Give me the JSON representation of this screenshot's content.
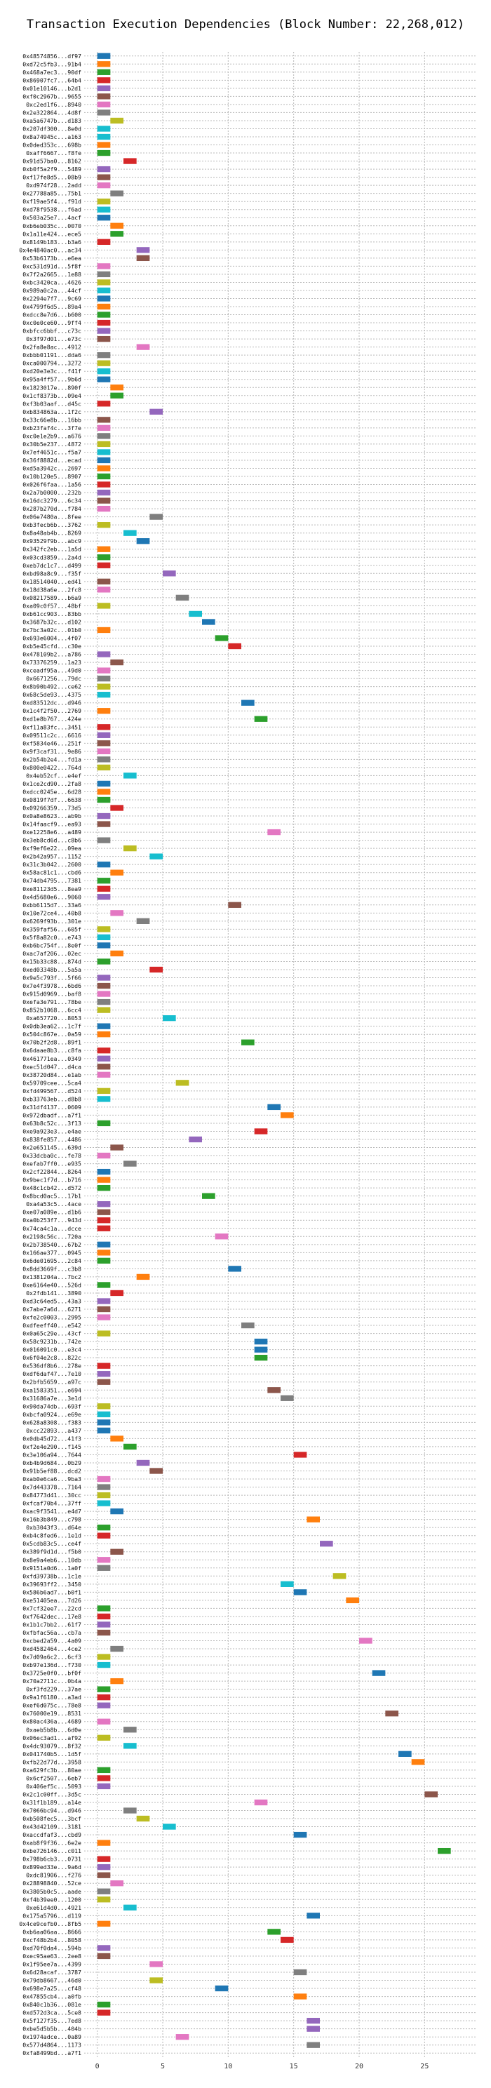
{
  "chart_data": {
    "type": "gantt",
    "title": "Transaction Execution Dependencies (Block Number: 22,268,012)",
    "xlabel": "",
    "ylabel": "",
    "xlim": [
      -1,
      29
    ],
    "xticks": [
      0,
      5,
      10,
      15,
      20,
      25
    ],
    "grid": true,
    "legend": "none",
    "colors": [
      "#1f77b4",
      "#ff7f0e",
      "#2ca02c",
      "#d62728",
      "#9467bd",
      "#8c564b",
      "#e377c2",
      "#7f7f7f",
      "#bcbd22",
      "#17becf"
    ],
    "categories": [
      "0x48574856...df97",
      "0xd72c5fb3...91b4",
      "0x468a7ec3...90df",
      "0x86907fc7...64b4",
      "0x01e10146...b2d1",
      "0xf0c2967b...9655",
      "0xc2ed1f6...8940",
      "0x2e322864...4d8f",
      "0xa5a6747b...d183",
      "0x207df300...8e0d",
      "0x8a74945c...a163",
      "0x0ded353c...698b",
      "0xaff6667...f8fe",
      "0x91d57ba0...8162",
      "0xb0f5a2f9...5489",
      "0xf17fe8d5...08b9",
      "0xd974f28...2add",
      "0x27788a85...75b1",
      "0xf19ae5f4...f91d",
      "0xd78f9538...f6ad",
      "0x503a25e7...4acf",
      "0xb6eb035c...0070",
      "0x1a11e424...ece5",
      "0x8149b183...b3a6",
      "0x4e4840ac0...ac34",
      "0x53b6173b...e6ea",
      "0xc531d91d...5f8f",
      "0x7f2a2665...1e88",
      "0xbc3420ca...4626",
      "0x989a0c2a...44cf",
      "0x2294e7f7...9c69",
      "0x4799f6d5...89a4",
      "0xdcc8e7d6...b600",
      "0xc0e0ce60...9ff4",
      "0xbfcc6bbf...c73c",
      "0x3f97d01...e73c",
      "0x2fa8e8ac...4912",
      "0xbbb01191...dda6",
      "0xca000794...3272",
      "0xd20e3e3c...f41f",
      "0x95a4ff57...9b6d",
      "0x1823017e...890f",
      "0x1cf8373b...09e4",
      "0xf3b03aaf...d45c",
      "0xb834863a...1f2c",
      "0x33c66e8b...16bb",
      "0xb23faf4c...3f7e",
      "0xc0e1e2b9...a676",
      "0x30b5e237...4872",
      "0x7ef4651c...f5a7",
      "0x36f8882d...ecad",
      "0xd5a3942c...2697",
      "0x10b120e5...8907",
      "0x026f6faa...1a56",
      "0x2a7b0000...232b",
      "0x16dc3279...6c34",
      "0x287b270d...f784",
      "0x06e7480a...8fee",
      "0xb3fecb6b...3762",
      "0x8a48ab4b...8269",
      "0x93529f9b...abc9",
      "0x342fc2eb...1a5d",
      "0x03cd3859...2a4d",
      "0xeb7dc1c7...d499",
      "0xbd98a8c9...f35f",
      "0x18514040...ed41",
      "0x18d38a6e...2fc8",
      "0x08217589...b6a9",
      "0xa09c0f57...48bf",
      "0xb61cc903...83bb",
      "0x3687b32c...d102",
      "0x7bc3a02c...01b0",
      "0x693e6004...4f07",
      "0xb5e45cfd...c30e",
      "0x478109b2...a786",
      "0x73376259...1a23",
      "0xceadf95a...49d0",
      "0x6671256...79dc",
      "0x8b90b492...ce62",
      "0x68c5de93...4375",
      "0xd83512dc...d946",
      "0x1c4f2f50...2769",
      "0xd1e8b767...424e",
      "0xf11a83fc...3451",
      "0x09511c2c...6616",
      "0xf5834e46...251f",
      "0x9f3caf31...9e86",
      "0x2b54b2e4...fd1a",
      "0x800e0422...764d",
      "0x4eb52cf...e4ef",
      "0x1ce2cd90...2fa8",
      "0xdcc0245e...6d28",
      "0x0819f7df...6638",
      "0x09266359...73d5",
      "0x0a8e8623...ab9b",
      "0x14faacf9...ea93",
      "0xe12258e6...a489",
      "0x3eb8cd6d...c8b6",
      "0xf9ef6e22...09ea",
      "0x2b42a957...1152",
      "0x31c3b042...2600",
      "0x58ac81c1...cbd6",
      "0x74db4795...7381",
      "0xe81123d5...8ea9",
      "0x4d5680e6...9060",
      "0xbb6115d7...33a6",
      "0x10e72ce4...40b8",
      "0x6269f93b...301e",
      "0x359faf56...605f",
      "0x5f8a82c0...e743",
      "0xb6bc754f...8e0f",
      "0xac7af206...02ec",
      "0x15b33c88...874d",
      "0xed03348b...5a5a",
      "0x9e5c793f...5f66",
      "0x7e4f3978...6bd6",
      "0x915d0969...baf8",
      "0xefa3e791...78be",
      "0x852b1068...6cc4",
      "0xa657720...8053",
      "0x0db3ea62...1c7f",
      "0x504c867e...0a59",
      "0x70b2f2d8...89f1",
      "0x6daae8b3...c8fa",
      "0x461771ea...0349",
      "0xec51d047...d4ca",
      "0x38720d84...e1ab",
      "0x59709cee...5ca4",
      "0xfd499567...d524",
      "0xb33763eb...d8b8",
      "0x31df4137...0609",
      "0x972dbadf...a7f1",
      "0x63b8c52c...3f13",
      "0xe9a923e3...e4ae",
      "0x838fe857...4486",
      "0x2e651145...639d",
      "0x33dcba0c...fe78",
      "0xefab7ff0...e935",
      "0x2cf22844...8264",
      "0x9bec1f7d...b716",
      "0x48c1cb42...d572",
      "0x8bcd0ac5...17b1",
      "0xa4a53c5...4ace",
      "0xe07a089e...d1b6",
      "0xa0b253f7...943d",
      "0x74ca4c1a...dcce",
      "0x2198c56c...720a",
      "0x2b738540...67b2",
      "0x166ae377...0945",
      "0x6de01695...2c84",
      "0x8dd3669f...c3b8",
      "0x1381204a...7bc2",
      "0xe6164e40...526d",
      "0x2fdb141...3890",
      "0xd3c64ed5...43a3",
      "0x7abe7a6d...6271",
      "0xfe2c0003...2995",
      "0xdfeeff40...e542",
      "0x0a65c29e...43cf",
      "0x58c9231b...742e",
      "0x016091c0...e3c4",
      "0x6f04e2c8...822c",
      "0x536df8b6...278e",
      "0xdf6daf47...7e10",
      "0x2bfb5659...a97c",
      "0xa1583351...e694",
      "0x31686a7e...3e1d",
      "0x90da74db...693f",
      "0xbcfa0924...e69e",
      "0x628a8308...f383",
      "0xcc22893...a437",
      "0x0db45d72...41f3",
      "0xf2e4e290...f145",
      "0x3e106a94...7644",
      "0xb4b9d684...0b29",
      "0x91b5ef88...dcd2",
      "0xab0e6ca6...9ba3",
      "0x7d443378...7164",
      "0x84773d41...30cc",
      "0xfcaf70b4...37ff",
      "0xac9f3541...e4d7",
      "0x16b3b849...c798",
      "0xb3043f3...d64e",
      "0xb4c8fed6...1e1d",
      "0x5cdb83c5...ce4f",
      "0x389f9d1d...f5b0",
      "0x8e9a4eb6...10db",
      "0x9151a0d6...1a0f",
      "0xfd39738b...1c1e",
      "0x39693ff2...3450",
      "0x586b6ad7...b0f1",
      "0xe51405ea...7d26",
      "0x7cf32ee7...22cd",
      "0xf7642dec...17e8",
      "0x1b1c7bb2...61f7",
      "0xfbfac56a...cb7a",
      "0xcbed2a59...4a09",
      "0xd4582464...4ce2",
      "0x7d09a6c2...6cf3",
      "0xb97e136d...f730",
      "0x3725e0f0...bf0f",
      "0x70a2711c...0b4a",
      "0xf3fd229...37ae",
      "0x9a1f6180...a3ad",
      "0xef6d075c...78e8",
      "0x76000e19...8531",
      "0x80ac436a...4689",
      "0xaeb5b8b...6d0e",
      "0x06ec3ad1...af92",
      "0x4dc93079...8f32",
      "0x041740b5...1d5f",
      "0xfb22d77d...3958",
      "0xa629fc3b...80ae",
      "0x6cf2507...6eb7",
      "0x406ef5c...5093",
      "0x2c1c00ff...3d5c",
      "0x31f1b189...a14e",
      "0x7066bc94...d946",
      "0xb508fec5...3bcf",
      "0x43d42109...3181",
      "0xaccdfaf3...cbd9",
      "0xab8f9f36...6e2e",
      "0xbe726146...c011",
      "0x798b6cb3...0731",
      "0x899ed33e...9a6d",
      "0xdc81906...f276",
      "0x28898840...52ce",
      "0x3805b0c5...aade",
      "0xf4b39ee0...1200",
      "0xe61d4d0...4921",
      "0x175a5796...d119",
      "0x4ce9cefb0...8fb5",
      "0xb6aa06aa...8666",
      "0xcf48b2b4...8058",
      "0xd70f0da4...594b",
      "0xec95ae63...2ee8",
      "0x1f95ee7a...4399",
      "0x6d28acaf...3787",
      "0x79db8667...46d0",
      "0x698e7a25...cf48",
      "0x47855cb4...a0fb",
      "0x840c1b36...081e",
      "0xd572d3ca...5ce8",
      "0x5f127f35...7ed8",
      "0xbe5d5b5b...404b",
      "0x1974adce...0a89",
      "0x577d4864...1173",
      "0xfa8499bd...a7f1"
    ],
    "bars": [
      [
        0,
        1,
        0
      ],
      [
        0,
        1,
        1
      ],
      [
        0,
        1,
        2
      ],
      [
        0,
        1,
        3
      ],
      [
        0,
        1,
        4
      ],
      [
        0,
        1,
        5
      ],
      [
        0,
        1,
        6
      ],
      [
        0,
        1,
        7
      ],
      [
        1,
        2,
        8
      ],
      [
        0,
        1,
        9
      ],
      [
        0,
        1,
        9
      ],
      [
        0,
        1,
        1
      ],
      [
        0,
        1,
        2
      ],
      [
        2,
        3,
        3
      ],
      [
        0,
        1,
        4
      ],
      [
        0,
        1,
        5
      ],
      [
        0,
        1,
        6
      ],
      [
        1,
        2,
        7
      ],
      [
        0,
        1,
        8
      ],
      [
        0,
        1,
        9
      ],
      [
        0,
        1,
        0
      ],
      [
        1,
        2,
        1
      ],
      [
        1,
        2,
        2
      ],
      [
        0,
        1,
        3
      ],
      [
        3,
        4,
        4
      ],
      [
        3,
        4,
        5
      ],
      [
        0,
        1,
        6
      ],
      [
        0,
        1,
        7
      ],
      [
        0,
        1,
        8
      ],
      [
        0,
        1,
        9
      ],
      [
        0,
        1,
        0
      ],
      [
        0,
        1,
        1
      ],
      [
        0,
        1,
        2
      ],
      [
        0,
        1,
        3
      ],
      [
        0,
        1,
        4
      ],
      [
        0,
        1,
        5
      ],
      [
        3,
        4,
        6
      ],
      [
        0,
        1,
        7
      ],
      [
        0,
        1,
        8
      ],
      [
        0,
        1,
        9
      ],
      [
        0,
        1,
        0
      ],
      [
        1,
        2,
        1
      ],
      [
        1,
        2,
        2
      ],
      [
        0,
        1,
        3
      ],
      [
        4,
        5,
        4
      ],
      [
        0,
        1,
        5
      ],
      [
        0,
        1,
        6
      ],
      [
        0,
        1,
        7
      ],
      [
        0,
        1,
        8
      ],
      [
        0,
        1,
        9
      ],
      [
        0,
        1,
        0
      ],
      [
        0,
        1,
        1
      ],
      [
        0,
        1,
        2
      ],
      [
        0,
        1,
        3
      ],
      [
        0,
        1,
        4
      ],
      [
        0,
        1,
        5
      ],
      [
        0,
        1,
        6
      ],
      [
        4,
        5,
        7
      ],
      [
        0,
        1,
        8
      ],
      [
        2,
        3,
        9
      ],
      [
        3,
        4,
        0
      ],
      [
        0,
        1,
        1
      ],
      [
        0,
        1,
        2
      ],
      [
        0,
        1,
        3
      ],
      [
        5,
        6,
        4
      ],
      [
        0,
        1,
        5
      ],
      [
        0,
        1,
        6
      ],
      [
        6,
        7,
        7
      ],
      [
        0,
        1,
        8
      ],
      [
        7,
        8,
        9
      ],
      [
        8,
        9,
        0
      ],
      [
        0,
        1,
        1
      ],
      [
        9,
        10,
        2
      ],
      [
        10,
        11,
        3
      ],
      [
        0,
        1,
        4
      ],
      [
        1,
        2,
        5
      ],
      [
        0,
        1,
        6
      ],
      [
        0,
        1,
        7
      ],
      [
        0,
        1,
        8
      ],
      [
        0,
        1,
        9
      ],
      [
        11,
        12,
        0
      ],
      [
        0,
        1,
        1
      ],
      [
        12,
        13,
        2
      ],
      [
        0,
        1,
        3
      ],
      [
        0,
        1,
        4
      ],
      [
        0,
        1,
        5
      ],
      [
        0,
        1,
        6
      ],
      [
        0,
        1,
        7
      ],
      [
        0,
        1,
        8
      ],
      [
        2,
        3,
        9
      ],
      [
        0,
        1,
        0
      ],
      [
        0,
        1,
        1
      ],
      [
        0,
        1,
        2
      ],
      [
        1,
        2,
        3
      ],
      [
        0,
        1,
        4
      ],
      [
        0,
        1,
        5
      ],
      [
        13,
        14,
        6
      ],
      [
        0,
        1,
        7
      ],
      [
        2,
        3,
        8
      ],
      [
        4,
        5,
        9
      ],
      [
        0,
        1,
        0
      ],
      [
        1,
        2,
        1
      ],
      [
        0,
        1,
        2
      ],
      [
        0,
        1,
        3
      ],
      [
        0,
        1,
        4
      ],
      [
        10,
        11,
        5
      ],
      [
        1,
        2,
        6
      ],
      [
        3,
        4,
        7
      ],
      [
        0,
        1,
        8
      ],
      [
        0,
        1,
        9
      ],
      [
        0,
        1,
        0
      ],
      [
        1,
        2,
        1
      ],
      [
        0,
        1,
        2
      ],
      [
        4,
        5,
        3
      ],
      [
        0,
        1,
        4
      ],
      [
        0,
        1,
        5
      ],
      [
        0,
        1,
        6
      ],
      [
        0,
        1,
        7
      ],
      [
        0,
        1,
        8
      ],
      [
        5,
        6,
        9
      ],
      [
        0,
        1,
        0
      ],
      [
        0,
        1,
        1
      ],
      [
        11,
        12,
        2
      ],
      [
        0,
        1,
        3
      ],
      [
        0,
        1,
        4
      ],
      [
        0,
        1,
        5
      ],
      [
        0,
        1,
        6
      ],
      [
        6,
        7,
        8
      ],
      [
        0,
        1,
        8
      ],
      [
        0,
        1,
        9
      ],
      [
        13,
        14,
        0
      ],
      [
        14,
        15,
        1
      ],
      [
        0,
        1,
        2
      ],
      [
        12,
        13,
        3
      ],
      [
        7,
        8,
        4
      ],
      [
        1,
        2,
        5
      ],
      [
        0,
        1,
        6
      ],
      [
        2,
        3,
        7
      ],
      [
        0,
        1,
        0
      ],
      [
        0,
        1,
        1
      ],
      [
        0,
        1,
        2
      ],
      [
        8,
        9,
        2
      ],
      [
        0,
        1,
        4
      ],
      [
        0,
        1,
        5
      ],
      [
        0,
        1,
        3
      ],
      [
        0,
        1,
        3
      ],
      [
        9,
        10,
        6
      ],
      [
        0,
        1,
        0
      ],
      [
        0,
        1,
        1
      ],
      [
        0,
        1,
        2
      ],
      [
        10,
        11,
        0
      ],
      [
        3,
        4,
        1
      ],
      [
        0,
        1,
        2
      ],
      [
        1,
        2,
        3
      ],
      [
        0,
        1,
        4
      ],
      [
        0,
        1,
        5
      ],
      [
        0,
        1,
        6
      ],
      [
        11,
        12,
        7
      ],
      [
        0,
        1,
        8
      ],
      [
        12,
        13,
        0
      ],
      [
        12,
        13,
        0
      ],
      [
        12,
        13,
        2
      ],
      [
        0,
        1,
        3
      ],
      [
        0,
        1,
        4
      ],
      [
        0,
        1,
        5
      ],
      [
        13,
        14,
        5
      ],
      [
        14,
        15,
        7
      ],
      [
        0,
        1,
        8
      ],
      [
        0,
        1,
        9
      ],
      [
        0,
        1,
        0
      ],
      [
        0,
        1,
        0
      ],
      [
        1,
        2,
        1
      ],
      [
        2,
        3,
        2
      ],
      [
        15,
        16,
        3
      ],
      [
        3,
        4,
        4
      ],
      [
        4,
        5,
        5
      ],
      [
        0,
        1,
        6
      ],
      [
        0,
        1,
        7
      ],
      [
        0,
        1,
        8
      ],
      [
        0,
        1,
        9
      ],
      [
        1,
        2,
        0
      ],
      [
        16,
        17,
        1
      ],
      [
        0,
        1,
        2
      ],
      [
        0,
        1,
        3
      ],
      [
        17,
        18,
        4
      ],
      [
        1,
        2,
        5
      ],
      [
        0,
        1,
        6
      ],
      [
        0,
        1,
        7
      ],
      [
        18,
        19,
        8
      ],
      [
        14,
        15,
        9
      ],
      [
        15,
        16,
        0
      ],
      [
        19,
        20,
        1
      ],
      [
        0,
        1,
        2
      ],
      [
        0,
        1,
        3
      ],
      [
        0,
        1,
        4
      ],
      [
        0,
        1,
        5
      ],
      [
        20,
        21,
        6
      ],
      [
        1,
        2,
        7
      ],
      [
        0,
        1,
        8
      ],
      [
        0,
        1,
        9
      ],
      [
        21,
        22,
        0
      ],
      [
        1,
        2,
        1
      ],
      [
        0,
        1,
        2
      ],
      [
        0,
        1,
        3
      ],
      [
        0,
        1,
        4
      ],
      [
        22,
        23,
        5
      ],
      [
        0,
        1,
        6
      ],
      [
        2,
        3,
        7
      ],
      [
        0,
        1,
        8
      ],
      [
        2,
        3,
        9
      ],
      [
        23,
        24,
        0
      ],
      [
        24,
        25,
        1
      ],
      [
        0,
        1,
        2
      ],
      [
        0,
        1,
        3
      ],
      [
        0,
        1,
        4
      ],
      [
        25,
        26,
        5
      ],
      [
        12,
        13,
        6
      ],
      [
        2,
        3,
        7
      ],
      [
        3,
        4,
        8
      ],
      [
        5,
        6,
        9
      ],
      [
        15,
        16,
        0
      ],
      [
        0,
        1,
        1
      ],
      [
        26,
        27,
        2
      ],
      [
        0,
        1,
        3
      ],
      [
        0,
        1,
        4
      ],
      [
        0,
        1,
        5
      ],
      [
        1,
        2,
        6
      ],
      [
        0,
        1,
        7
      ],
      [
        0,
        1,
        8
      ],
      [
        2,
        3,
        9
      ],
      [
        16,
        17,
        0
      ],
      [
        0,
        1,
        1
      ],
      [
        13,
        14,
        2
      ],
      [
        14,
        15,
        3
      ],
      [
        0,
        1,
        4
      ],
      [
        0,
        1,
        5
      ],
      [
        4,
        5,
        6
      ],
      [
        15,
        16,
        7
      ],
      [
        4,
        5,
        8
      ],
      [
        9,
        10,
        0
      ],
      [
        15,
        16,
        1
      ],
      [
        0,
        1,
        2
      ],
      [
        0,
        1,
        3
      ],
      [
        16,
        17,
        4
      ],
      [
        16,
        17,
        4
      ],
      [
        6,
        7,
        6
      ],
      [
        16,
        17,
        7
      ]
    ]
  }
}
